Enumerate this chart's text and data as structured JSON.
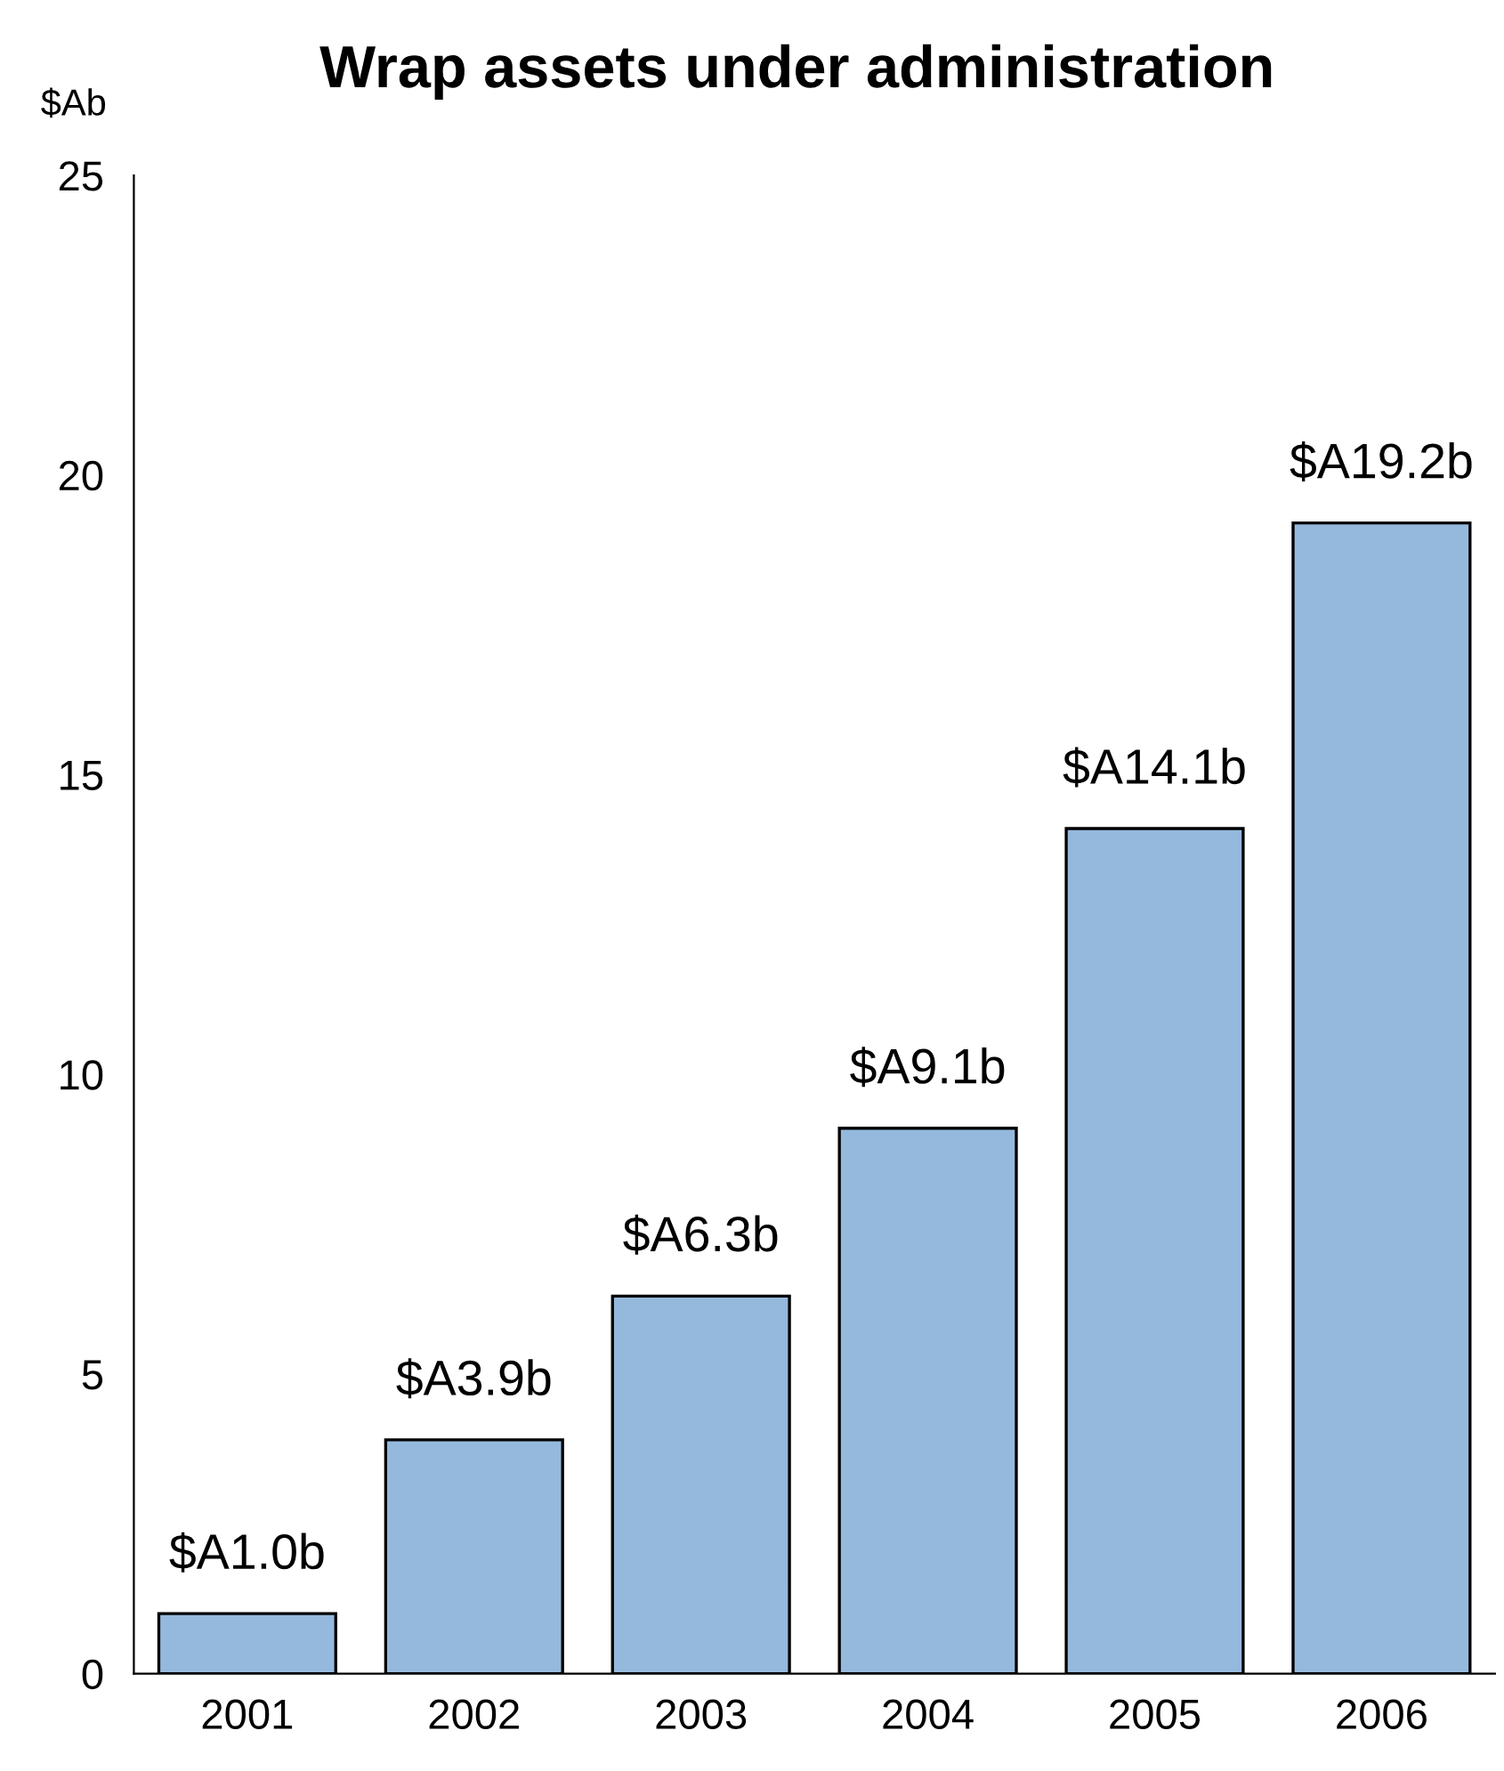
{
  "chart_data": {
    "type": "bar",
    "title": "Wrap assets under administration",
    "ylabel": "$Ab",
    "categories": [
      "2001",
      "2002",
      "2003",
      "2004",
      "2005",
      "2006"
    ],
    "values": [
      1.0,
      3.9,
      6.3,
      9.1,
      14.1,
      19.2
    ],
    "value_labels": [
      "$A1.0b",
      "$A3.9b",
      "$A6.3b",
      "$A9.1b",
      "$A14.1b",
      "$A19.2b"
    ],
    "color": "#95b9dd",
    "ylim": [
      0,
      25
    ],
    "yticks": [
      0,
      5,
      10,
      15,
      20,
      25
    ],
    "grid": false,
    "legend": false
  }
}
